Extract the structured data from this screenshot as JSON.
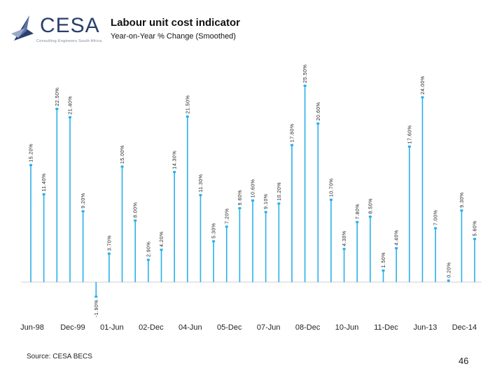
{
  "header": {
    "title": "Labour unit cost indicator",
    "subtitle": "Year-on-Year % Change (Smoothed)"
  },
  "logo": {
    "name": "CESA",
    "tagline": "Consulting Engineers South Africa"
  },
  "footer": {
    "source": "Source: CESA BECS",
    "page_number": "46"
  },
  "colors": {
    "bar": "#29b0e8",
    "marker": "#29b0e8",
    "baseline": "#cfcfcf",
    "logo": "#2a3f6b"
  },
  "chart_data": {
    "type": "bar",
    "title": "Labour unit cost indicator",
    "subtitle": "Year-on-Year % Change (Smoothed)",
    "xlabel": "",
    "ylabel": "",
    "ylim": [
      -2,
      26
    ],
    "values": [
      15.2,
      11.4,
      22.5,
      21.4,
      9.2,
      -1.9,
      3.7,
      15.0,
      8.0,
      2.9,
      4.2,
      14.3,
      21.5,
      11.3,
      5.3,
      7.2,
      9.6,
      10.6,
      9.1,
      10.2,
      17.8,
      25.5,
      20.6,
      10.7,
      4.3,
      7.8,
      8.5,
      1.5,
      4.4,
      17.6,
      24.0,
      7.0,
      0.2,
      9.3,
      5.6
    ],
    "labels": [
      "15.20%",
      "11.40%",
      "22.50%",
      "21.40%",
      "9.20%",
      "-1.90%",
      "3.70%",
      "15.00%",
      "8.00%",
      "2.90%",
      "4.20%",
      "14.30%",
      "21.50%",
      "11.30%",
      "5.30%",
      "7.20%",
      "9.60%",
      "10.60%",
      "9.10%",
      "10.20%",
      "17.80%",
      "25.50%",
      "20.60%",
      "10.70%",
      "4.30%",
      "7.80%",
      "8.50%",
      "1.50%",
      "4.40%",
      "17.60%",
      "24.00%",
      "7.00%",
      "0.20%",
      "9.30%",
      "5.60%"
    ],
    "x_tick_labels": [
      "Jun-98",
      "Dec-99",
      "01-Jun",
      "02-Dec",
      "04-Jun",
      "05-Dec",
      "07-Jun",
      "08-Dec",
      "10-Jun",
      "11-Dec",
      "Jun-13",
      "Dec-14"
    ],
    "x_tick_positions": [
      0,
      3,
      6,
      9,
      12,
      15,
      18,
      21,
      24,
      27,
      30,
      33
    ],
    "grid": false,
    "legend": "none"
  }
}
